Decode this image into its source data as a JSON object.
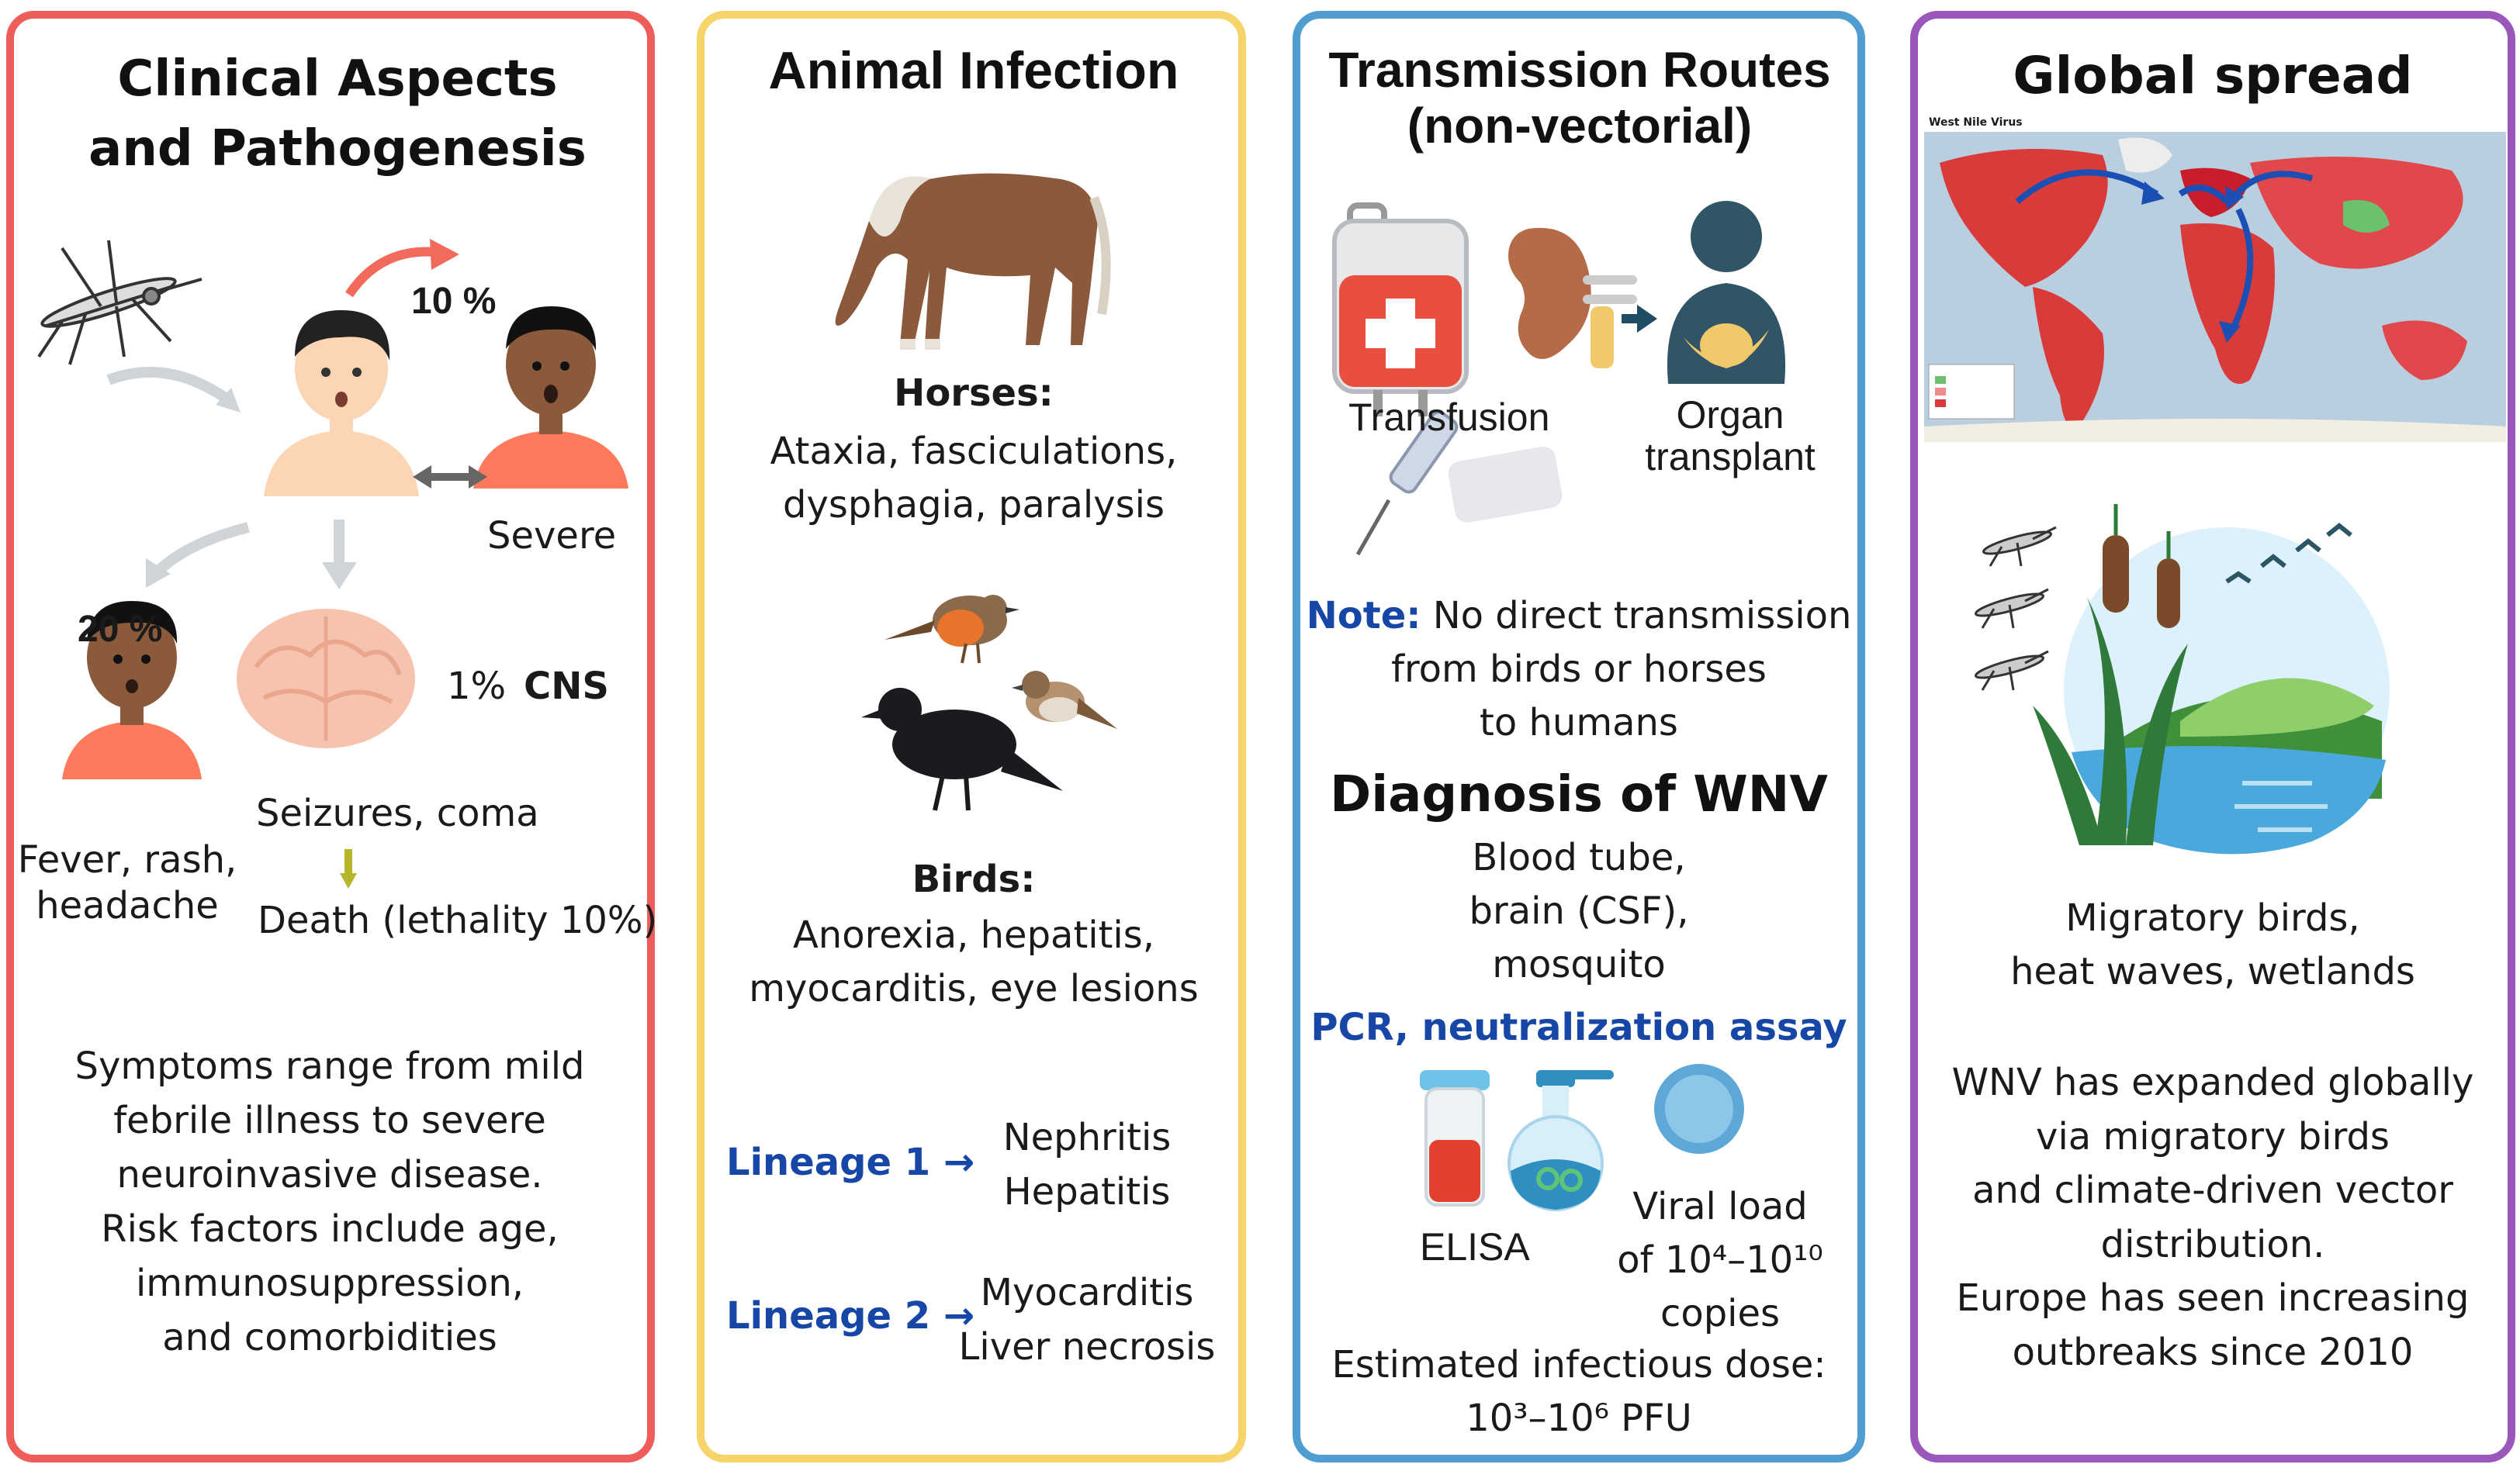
{
  "panels": {
    "clinical": {
      "title_line1": "Clinical Aspects",
      "title_line2": "and Pathogenesis",
      "pct_severe": "10 %",
      "label_severe": "Severe",
      "pct_mild": "20 %",
      "pct_cns": "1%",
      "label_cns": "CNS",
      "mild_l1": "Fever, rash,",
      "mild_l2": "headache",
      "cns_outcome": "Seizures, coma",
      "death": "Death (lethality 10%)",
      "summary": [
        "Symptoms range from mild",
        "febrile illness to severe",
        "neuroinvasive disease.",
        "Risk factors include age,",
        "immunosuppression,",
        "and comorbidities"
      ],
      "accent_color": "#ee5d5a"
    },
    "animal": {
      "title": "Animal Infection",
      "horses_heading": "Horses:",
      "horses_l1": "Ataxia, fasciculations,",
      "horses_l2": "dysphagia, paralysis",
      "birds_heading": "Birds:",
      "birds_l1": "Anorexia, hepatitis,",
      "birds_l2": "myocarditis, eye lesions",
      "lineage1_label": "Lineage 1 →",
      "lineage1_l1": "Nephritis",
      "lineage1_l2": "Hepatitis",
      "lineage2_label": "Lineage 2 →",
      "lineage2_l1": "Myocarditis",
      "lineage2_l2": "Liver necrosis",
      "accent_color": "#f7d46a"
    },
    "transmission": {
      "title_line1": "Transmission Routes",
      "title_line2": "(non-vectorial)",
      "label_transfusion": "Transfusion",
      "label_organ_l1": "Organ",
      "label_organ_l2": "transplant",
      "note_label": "Note:",
      "note_l1": "No direct transmission",
      "note_l2": "from birds or horses",
      "note_l3": "to humans",
      "diag_title": "Diagnosis of WNV",
      "diag_l1": "Blood tube,",
      "diag_l2": "brain (CSF),",
      "diag_l3": "mosquito",
      "assay": "PCR, neutralization assay",
      "label_elisa": "ELISA",
      "viral_l1": "Viral load",
      "viral_l2": "of 10⁴–10¹⁰",
      "viral_l3": "copies",
      "dose_l1": "Estimated infectious dose:",
      "dose_l2": "10³–10⁶ PFU",
      "accent_color": "#4f9dd1"
    },
    "global": {
      "title": "Global spread",
      "map_title": "West Nile Virus",
      "drivers_l1": "Migratory birds,",
      "drivers_l2": "heat waves, wetlands",
      "summary": [
        "WNV has expanded globally",
        "via migratory birds",
        "and climate-driven vector",
        "distribution.",
        "Europe has seen increasing",
        "outbreaks since 2010"
      ],
      "accent_color": "#9a58bd"
    }
  },
  "icons": [
    "mosquito-icon",
    "person-icon",
    "brain-icon",
    "horse-icon",
    "bird-icon",
    "blood-bag-icon",
    "kidney-icon",
    "organ-transplant-icon",
    "syringe-icon",
    "test-tube-icon",
    "flask-icon",
    "petri-dish-icon",
    "world-map",
    "wetland-icon"
  ],
  "colors": {
    "blue_text": "#1747a6",
    "skin": "#fcd5b5",
    "dark_skin": "#8a5a3b",
    "shirt": "#ff7a5c"
  }
}
